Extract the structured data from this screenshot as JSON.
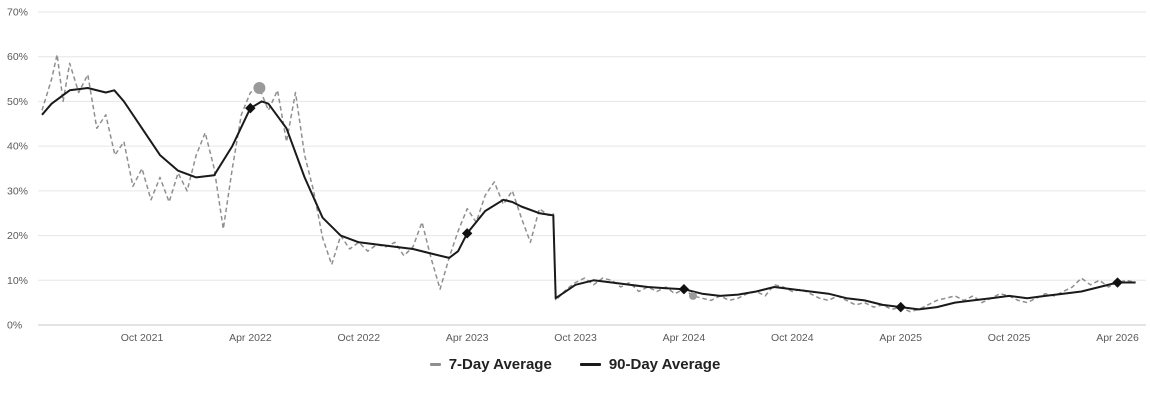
{
  "legend": {
    "items": [
      {
        "label": "7-Day Average",
        "swatch": "dashed",
        "color": "#8f8f8f"
      },
      {
        "label": "90-Day Average",
        "swatch": "solid",
        "color": "#1a1a1a"
      }
    ]
  },
  "chart_data": {
    "type": "line",
    "title": "",
    "xlabel": "",
    "ylabel": "",
    "grid": "horizontal",
    "legend_position": "bottom-center",
    "ylim": [
      0,
      70
    ],
    "y_ticks": [
      {
        "value": 0,
        "label": "0%"
      },
      {
        "value": 10,
        "label": "10%"
      },
      {
        "value": 20,
        "label": "20%"
      },
      {
        "value": 30,
        "label": "30%"
      },
      {
        "value": 40,
        "label": "40%"
      },
      {
        "value": 50,
        "label": "50%"
      },
      {
        "value": 60,
        "label": "60%"
      },
      {
        "value": 70,
        "label": "70%"
      }
    ],
    "x_range": [
      "2021-04-15",
      "2026-05-05"
    ],
    "x_ticks": [
      {
        "date": "2021-10-01",
        "label": "Oct 2021"
      },
      {
        "date": "2022-04-01",
        "label": "Apr 2022"
      },
      {
        "date": "2022-10-01",
        "label": "Oct 2022"
      },
      {
        "date": "2023-04-01",
        "label": "Apr 2023"
      },
      {
        "date": "2023-10-01",
        "label": "Oct 2023"
      },
      {
        "date": "2024-04-01",
        "label": "Apr 2024"
      },
      {
        "date": "2024-10-01",
        "label": "Oct 2024"
      },
      {
        "date": "2025-04-01",
        "label": "Apr 2025"
      },
      {
        "date": "2025-10-01",
        "label": "Oct 2025"
      },
      {
        "date": "2026-04-01",
        "label": "Apr 2026"
      }
    ],
    "series": [
      {
        "name": "7-Day Average",
        "style": "dashed",
        "color": "#8f8f8f",
        "points": [
          [
            "2021-04-15",
            48
          ],
          [
            "2021-05-01",
            55
          ],
          [
            "2021-05-10",
            60.5
          ],
          [
            "2021-05-20",
            50
          ],
          [
            "2021-06-01",
            58.5
          ],
          [
            "2021-06-16",
            52
          ],
          [
            "2021-07-01",
            56
          ],
          [
            "2021-07-16",
            44
          ],
          [
            "2021-08-01",
            47
          ],
          [
            "2021-08-16",
            38
          ],
          [
            "2021-09-01",
            41
          ],
          [
            "2021-09-16",
            31
          ],
          [
            "2021-10-01",
            35
          ],
          [
            "2021-10-16",
            28
          ],
          [
            "2021-11-01",
            33
          ],
          [
            "2021-11-16",
            27.5
          ],
          [
            "2021-12-01",
            34
          ],
          [
            "2021-12-16",
            30
          ],
          [
            "2022-01-01",
            38
          ],
          [
            "2022-01-16",
            43
          ],
          [
            "2022-02-01",
            35
          ],
          [
            "2022-02-16",
            21.5
          ],
          [
            "2022-03-01",
            35
          ],
          [
            "2022-03-16",
            47
          ],
          [
            "2022-04-01",
            52
          ],
          [
            "2022-04-16",
            53
          ],
          [
            "2022-05-01",
            48
          ],
          [
            "2022-05-16",
            52.5
          ],
          [
            "2022-06-01",
            41
          ],
          [
            "2022-06-16",
            52
          ],
          [
            "2022-07-01",
            38
          ],
          [
            "2022-07-16",
            30
          ],
          [
            "2022-08-01",
            19.5
          ],
          [
            "2022-08-16",
            13.5
          ],
          [
            "2022-09-01",
            20
          ],
          [
            "2022-09-16",
            17
          ],
          [
            "2022-10-01",
            18.5
          ],
          [
            "2022-10-16",
            16.5
          ],
          [
            "2022-11-01",
            18
          ],
          [
            "2022-11-16",
            17.5
          ],
          [
            "2022-12-01",
            18.5
          ],
          [
            "2022-12-16",
            15.5
          ],
          [
            "2023-01-01",
            17.5
          ],
          [
            "2023-01-16",
            23
          ],
          [
            "2023-02-01",
            15
          ],
          [
            "2023-02-16",
            8
          ],
          [
            "2023-03-01",
            15
          ],
          [
            "2023-03-16",
            21
          ],
          [
            "2023-04-01",
            26
          ],
          [
            "2023-04-16",
            23
          ],
          [
            "2023-05-01",
            29
          ],
          [
            "2023-05-16",
            32
          ],
          [
            "2023-06-01",
            27
          ],
          [
            "2023-06-16",
            30
          ],
          [
            "2023-07-01",
            24
          ],
          [
            "2023-07-16",
            18.5
          ],
          [
            "2023-08-01",
            26
          ],
          [
            "2023-08-16",
            24.5
          ],
          [
            "2023-08-24",
            25
          ],
          [
            "2023-08-28",
            5.5
          ],
          [
            "2023-09-16",
            8
          ],
          [
            "2023-10-01",
            9.5
          ],
          [
            "2023-10-16",
            10.5
          ],
          [
            "2023-11-01",
            9
          ],
          [
            "2023-11-16",
            10.5
          ],
          [
            "2023-12-01",
            10
          ],
          [
            "2023-12-16",
            8.5
          ],
          [
            "2024-01-01",
            9.5
          ],
          [
            "2024-01-16",
            7.5
          ],
          [
            "2024-02-01",
            8.5
          ],
          [
            "2024-02-16",
            7.5
          ],
          [
            "2024-03-01",
            8.5
          ],
          [
            "2024-03-16",
            7
          ],
          [
            "2024-04-01",
            8
          ],
          [
            "2024-04-16",
            6.5
          ],
          [
            "2024-05-01",
            6
          ],
          [
            "2024-05-16",
            5.5
          ],
          [
            "2024-06-01",
            6.5
          ],
          [
            "2024-06-16",
            5.5
          ],
          [
            "2024-07-01",
            6
          ],
          [
            "2024-07-16",
            7
          ],
          [
            "2024-08-01",
            7.5
          ],
          [
            "2024-08-16",
            6.5
          ],
          [
            "2024-09-01",
            9
          ],
          [
            "2024-09-16",
            8.5
          ],
          [
            "2024-10-01",
            7.5
          ],
          [
            "2024-10-16",
            8
          ],
          [
            "2024-11-01",
            7
          ],
          [
            "2024-11-16",
            6
          ],
          [
            "2024-12-01",
            5.5
          ],
          [
            "2024-12-16",
            6.5
          ],
          [
            "2025-01-01",
            5.5
          ],
          [
            "2025-01-16",
            4.5
          ],
          [
            "2025-02-01",
            5
          ],
          [
            "2025-02-16",
            4
          ],
          [
            "2025-03-01",
            4.5
          ],
          [
            "2025-03-16",
            3.5
          ],
          [
            "2025-04-01",
            4
          ],
          [
            "2025-04-16",
            3
          ],
          [
            "2025-05-01",
            3.5
          ],
          [
            "2025-05-16",
            4.5
          ],
          [
            "2025-06-01",
            5.5
          ],
          [
            "2025-06-16",
            6
          ],
          [
            "2025-07-01",
            6.5
          ],
          [
            "2025-07-16",
            5.5
          ],
          [
            "2025-08-01",
            6.5
          ],
          [
            "2025-08-16",
            5
          ],
          [
            "2025-09-01",
            6
          ],
          [
            "2025-09-16",
            7
          ],
          [
            "2025-10-01",
            6.5
          ],
          [
            "2025-10-16",
            5.5
          ],
          [
            "2025-11-01",
            5
          ],
          [
            "2025-11-16",
            6
          ],
          [
            "2025-12-01",
            7
          ],
          [
            "2025-12-16",
            6.5
          ],
          [
            "2026-01-01",
            7.5
          ],
          [
            "2026-01-16",
            8.5
          ],
          [
            "2026-02-01",
            10.5
          ],
          [
            "2026-02-16",
            9
          ],
          [
            "2026-03-01",
            10
          ],
          [
            "2026-03-16",
            8.5
          ],
          [
            "2026-04-01",
            9.5
          ],
          [
            "2026-04-16",
            10
          ],
          [
            "2026-05-01",
            9.5
          ]
        ]
      },
      {
        "name": "90-Day Average",
        "style": "solid",
        "color": "#1a1a1a",
        "points": [
          [
            "2021-04-15",
            47
          ],
          [
            "2021-05-01",
            49.5
          ],
          [
            "2021-06-01",
            52.5
          ],
          [
            "2021-07-01",
            53
          ],
          [
            "2021-08-01",
            52
          ],
          [
            "2021-08-15",
            52.5
          ],
          [
            "2021-09-01",
            50
          ],
          [
            "2021-10-01",
            44
          ],
          [
            "2021-11-01",
            38
          ],
          [
            "2021-12-01",
            34.5
          ],
          [
            "2022-01-01",
            33
          ],
          [
            "2022-02-01",
            33.5
          ],
          [
            "2022-03-01",
            40
          ],
          [
            "2022-04-01",
            48.5
          ],
          [
            "2022-04-20",
            50
          ],
          [
            "2022-05-01",
            49.5
          ],
          [
            "2022-06-01",
            44
          ],
          [
            "2022-07-01",
            33
          ],
          [
            "2022-08-01",
            24
          ],
          [
            "2022-09-01",
            20
          ],
          [
            "2022-10-01",
            18.5
          ],
          [
            "2022-11-01",
            18
          ],
          [
            "2022-12-01",
            17.5
          ],
          [
            "2023-01-01",
            17
          ],
          [
            "2023-02-01",
            16
          ],
          [
            "2023-03-01",
            15
          ],
          [
            "2023-03-16",
            16.5
          ],
          [
            "2023-04-01",
            20.5
          ],
          [
            "2023-05-01",
            25.5
          ],
          [
            "2023-06-01",
            28
          ],
          [
            "2023-06-16",
            27.5
          ],
          [
            "2023-07-01",
            26.5
          ],
          [
            "2023-08-01",
            25
          ],
          [
            "2023-08-24",
            24.5
          ],
          [
            "2023-08-28",
            6
          ],
          [
            "2023-10-01",
            9
          ],
          [
            "2023-11-01",
            10
          ],
          [
            "2023-12-01",
            9.5
          ],
          [
            "2024-01-01",
            9
          ],
          [
            "2024-02-01",
            8.5
          ],
          [
            "2024-03-01",
            8.2
          ],
          [
            "2024-04-01",
            8
          ],
          [
            "2024-05-01",
            7
          ],
          [
            "2024-06-01",
            6.5
          ],
          [
            "2024-07-01",
            6.8
          ],
          [
            "2024-08-01",
            7.5
          ],
          [
            "2024-09-01",
            8.5
          ],
          [
            "2024-10-01",
            8
          ],
          [
            "2024-11-01",
            7.5
          ],
          [
            "2024-12-01",
            7
          ],
          [
            "2025-01-01",
            6
          ],
          [
            "2025-02-01",
            5.5
          ],
          [
            "2025-03-01",
            4.5
          ],
          [
            "2025-04-01",
            4
          ],
          [
            "2025-05-01",
            3.5
          ],
          [
            "2025-06-01",
            4
          ],
          [
            "2025-07-01",
            5
          ],
          [
            "2025-08-01",
            5.5
          ],
          [
            "2025-09-01",
            6
          ],
          [
            "2025-10-01",
            6.5
          ],
          [
            "2025-11-01",
            6
          ],
          [
            "2025-12-01",
            6.5
          ],
          [
            "2026-01-01",
            7
          ],
          [
            "2026-02-01",
            7.5
          ],
          [
            "2026-03-01",
            8.5
          ],
          [
            "2026-04-01",
            9.5
          ],
          [
            "2026-05-01",
            9.5
          ]
        ]
      }
    ],
    "markers": [
      {
        "shape": "circle",
        "series": "7-Day Average",
        "color": "#9a9a9a",
        "date": "2022-04-16",
        "value": 53,
        "radius": 6
      },
      {
        "shape": "circle",
        "series": "7-Day Average",
        "color": "#9a9a9a",
        "date": "2024-04-16",
        "value": 6.5,
        "radius": 4
      },
      {
        "shape": "diamond",
        "series": "90-Day Average",
        "color": "#111111",
        "date": "2022-04-01",
        "value": 48.5
      },
      {
        "shape": "diamond",
        "series": "90-Day Average",
        "color": "#111111",
        "date": "2023-04-01",
        "value": 20.5
      },
      {
        "shape": "diamond",
        "series": "90-Day Average",
        "color": "#111111",
        "date": "2024-04-01",
        "value": 8
      },
      {
        "shape": "diamond",
        "series": "90-Day Average",
        "color": "#111111",
        "date": "2025-04-01",
        "value": 4
      },
      {
        "shape": "diamond",
        "series": "90-Day Average",
        "color": "#111111",
        "date": "2026-04-01",
        "value": 9.5
      }
    ],
    "colors": {
      "grid_line": "#e6e6e6",
      "baseline": "#c9c9c9",
      "axis_text": "#5a5a5a",
      "background": "#ffffff"
    }
  }
}
